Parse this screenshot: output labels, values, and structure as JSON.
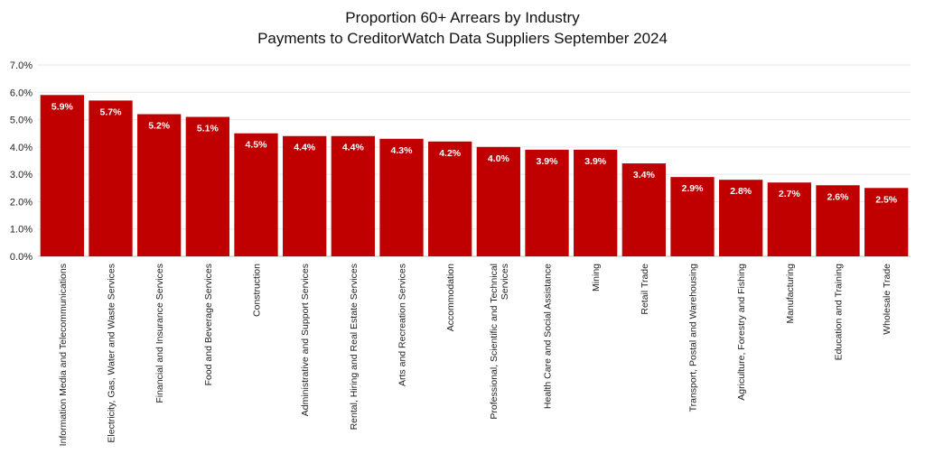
{
  "chart_data": {
    "type": "bar",
    "title": "Proportion 60+ Arrears by Industry",
    "subtitle": "Payments to CreditorWatch Data Suppliers September 2024",
    "categories": [
      "Information Media and Telecommunications",
      "Electricity, Gas, Water and Waste Services",
      "Financial and Insurance Services",
      "Food and Beverage Services",
      "Construction",
      "Administrative and Support Services",
      "Rental, Hiring and Real Estate Services",
      "Arts and Recreation Services",
      "Accommodation",
      "Professional, Scientific and Technical Services",
      "Health Care and Social Assistance",
      "Mining",
      "Retail Trade",
      "Transport, Postal and Warehousing",
      "Agriculture, Forestry and Fishing",
      "Manufacturing",
      "Education and Training",
      "Wholesale Trade"
    ],
    "category_label_lines": [
      [
        "Information Media and Telecommunications"
      ],
      [
        "Electricity, Gas, Water and Waste Services"
      ],
      [
        "Financial and Insurance Services"
      ],
      [
        "Food and Beverage Services"
      ],
      [
        "Construction"
      ],
      [
        "Administrative and Support Services"
      ],
      [
        "Rental, Hiring and Real Estate Services"
      ],
      [
        "Arts and Recreation Services"
      ],
      [
        "Accommodation"
      ],
      [
        "Professional, Scientific and Technical",
        "Services"
      ],
      [
        "Health Care and Social Assistance"
      ],
      [
        "Mining"
      ],
      [
        "Retail Trade"
      ],
      [
        "Transport, Postal and Warehousing"
      ],
      [
        "Agriculture, Forestry and Fishing"
      ],
      [
        "Manufacturing"
      ],
      [
        "Education and Training"
      ],
      [
        "Wholesale Trade"
      ]
    ],
    "values": [
      5.9,
      5.7,
      5.2,
      5.1,
      4.5,
      4.4,
      4.4,
      4.3,
      4.2,
      4.0,
      3.9,
      3.9,
      3.4,
      2.9,
      2.8,
      2.7,
      2.6,
      2.5
    ],
    "data_labels": [
      "5.9%",
      "5.7%",
      "5.2%",
      "5.1%",
      "4.5%",
      "4.4%",
      "4.4%",
      "4.3%",
      "4.2%",
      "4.0%",
      "3.9%",
      "3.9%",
      "3.4%",
      "2.9%",
      "2.8%",
      "2.7%",
      "2.6%",
      "2.5%"
    ],
    "yticks": [
      0,
      1,
      2,
      3,
      4,
      5,
      6,
      7
    ],
    "ytick_labels": [
      "0.0%",
      "1.0%",
      "2.0%",
      "3.0%",
      "4.0%",
      "5.0%",
      "6.0%",
      "7.0%"
    ],
    "ylim": [
      0,
      7
    ],
    "grid": true,
    "legend": false,
    "bar_color": "#C00000",
    "grid_color": "#E6E6E6",
    "label_color": "#FFFFFF"
  }
}
